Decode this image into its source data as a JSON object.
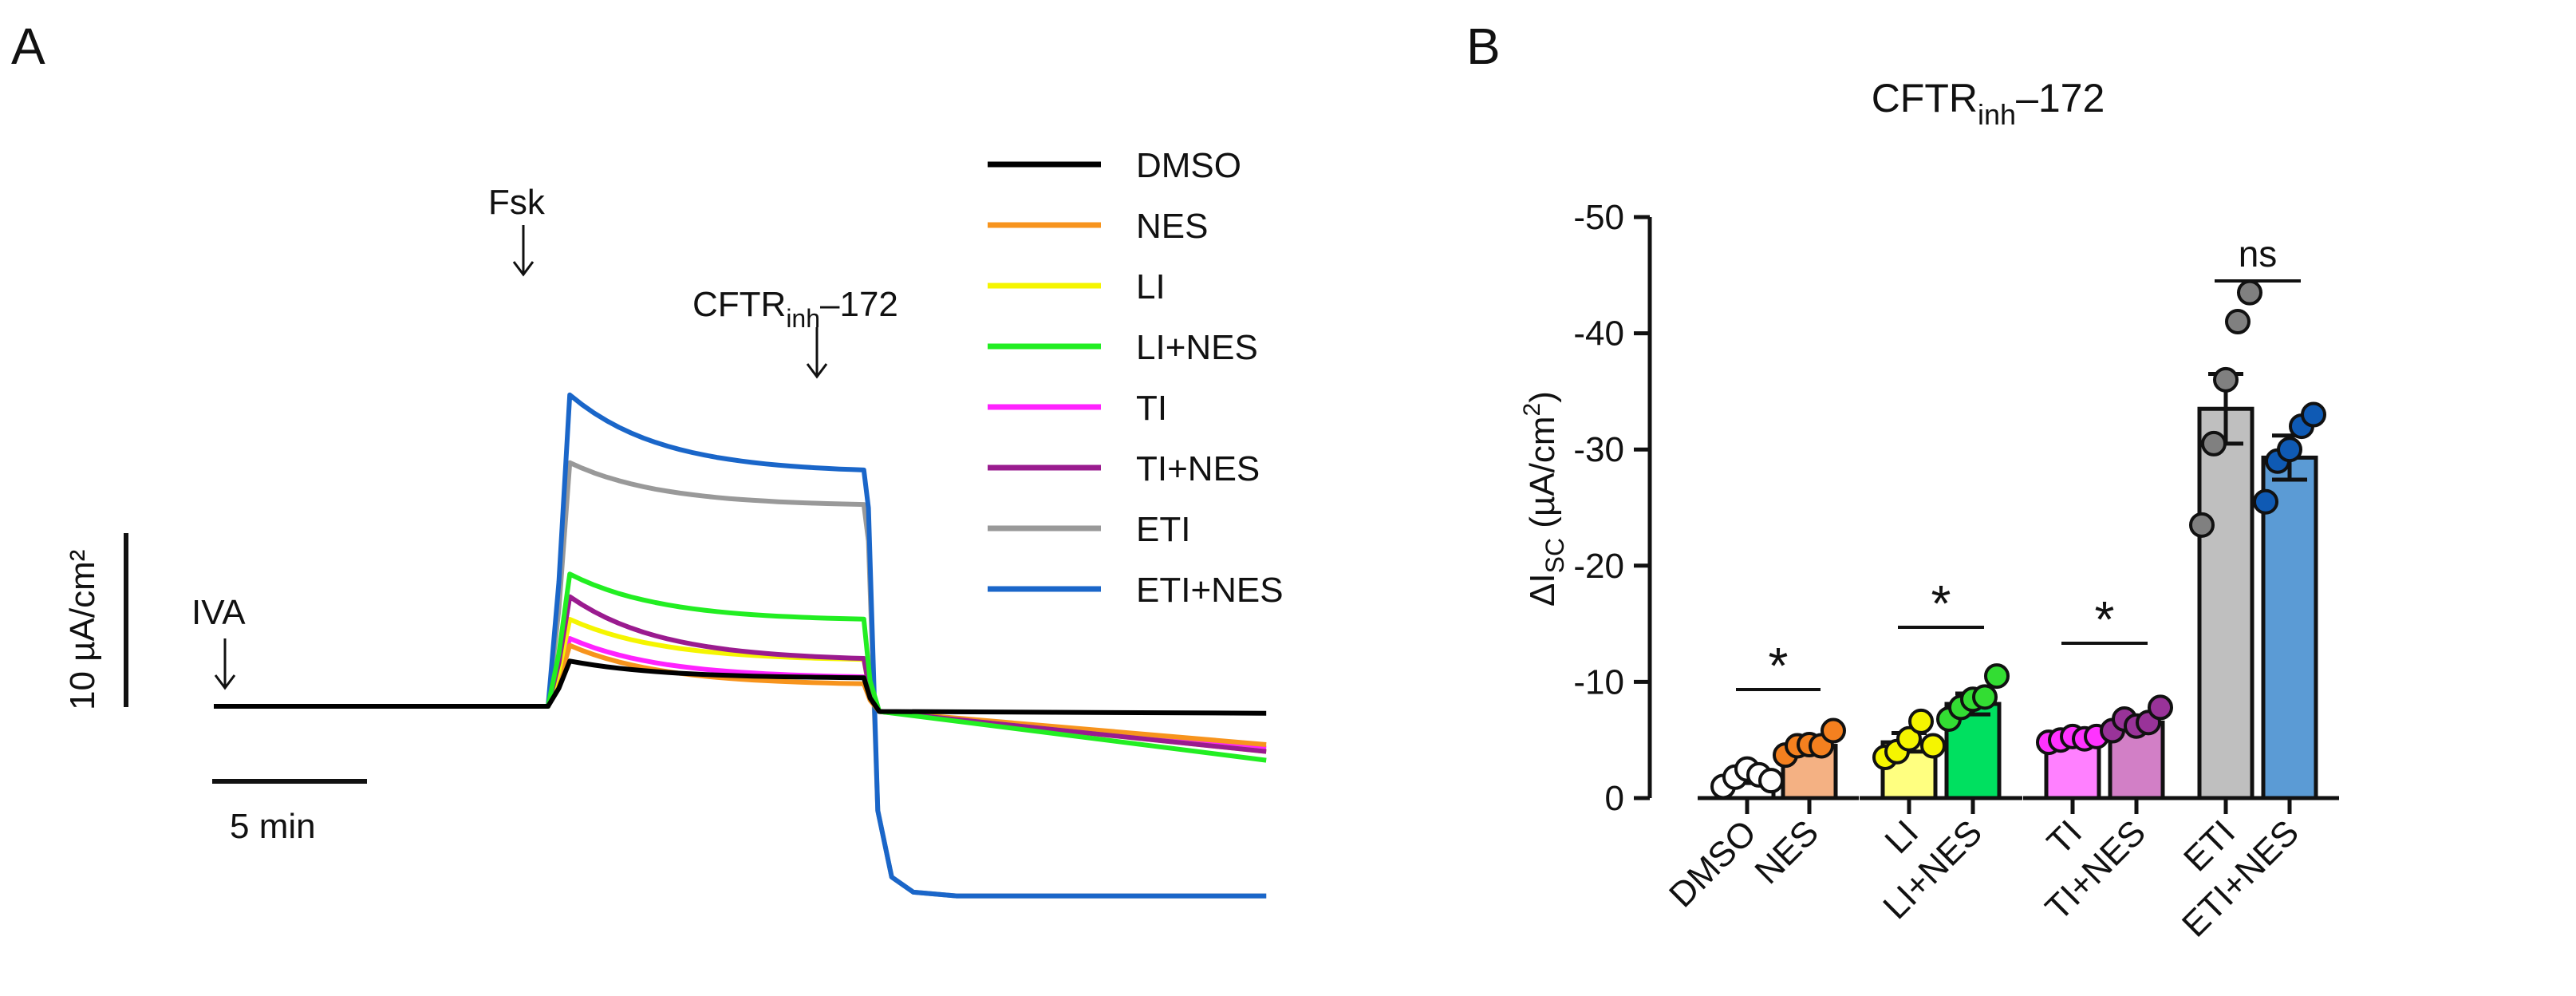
{
  "panel_a": {
    "letter": "A",
    "annotations": {
      "iva": "IVA",
      "fsk": "Fsk",
      "cftr_main": "CFTR",
      "cftr_sub": "inh",
      "cftr_end": "–172"
    },
    "scalebars": {
      "vertical": "10 µA/cm²",
      "horizontal": "5 min"
    },
    "colors": {
      "DMSO": "#000000",
      "NES": "#f7941d",
      "LI": "#f5f500",
      "LI+NES": "#22ee22",
      "TI": "#ff22ff",
      "TI+NES": "#9a1b8f",
      "ETI": "#999999",
      "ETI+NES": "#1a66c9"
    }
  },
  "panel_b": {
    "letter": "B",
    "title_main": "CFTR",
    "title_sub": "inh",
    "title_end": "–172",
    "ylabel_main": "ΔI",
    "ylabel_sub": "SC",
    "ylabel_unit": " (µA/cm",
    "ylabel_sup": "2",
    "ylabel_close": ")",
    "significance": [
      "*",
      "*",
      "*",
      "ns"
    ]
  },
  "chart_data": [
    {
      "type": "line",
      "xlabel": "",
      "ylabel": "",
      "x_unit": "min",
      "y_unit": "µA/cm²",
      "events": [
        {
          "label": "IVA",
          "x": 0
        },
        {
          "label": "Fsk",
          "x": 11
        },
        {
          "label": "CFTRinh–172",
          "x": 21
        }
      ],
      "series": [
        {
          "name": "DMSO",
          "baseline": 0,
          "iva": 0,
          "fsk_peak": 2.6,
          "fsk_end": 1.6,
          "inh_end": -0.4
        },
        {
          "name": "NES",
          "baseline": 0,
          "iva": 0,
          "fsk_peak": 3.5,
          "fsk_end": 1.2,
          "inh_end": -2.2
        },
        {
          "name": "LI",
          "baseline": 0,
          "iva": 0,
          "fsk_peak": 5.0,
          "fsk_end": 2.6,
          "inh_end": -2.6
        },
        {
          "name": "LI+NES",
          "baseline": 0,
          "iva": 0,
          "fsk_peak": 7.6,
          "fsk_end": 4.9,
          "inh_end": -3.1
        },
        {
          "name": "TI",
          "baseline": 0,
          "iva": 0,
          "fsk_peak": 3.9,
          "fsk_end": 1.6,
          "inh_end": -2.4
        },
        {
          "name": "TI+NES",
          "baseline": 0,
          "iva": 0,
          "fsk_peak": 6.3,
          "fsk_end": 2.6,
          "inh_end": -2.6
        },
        {
          "name": "ETI",
          "baseline": 0,
          "iva": 0,
          "fsk_peak": 14.0,
          "fsk_end": 11.5,
          "inh_end": -10.9
        },
        {
          "name": "ETI+NES",
          "baseline": 0,
          "iva": 0,
          "fsk_peak": 17.9,
          "fsk_end": 13.4,
          "inh_end": -10.9
        }
      ],
      "legend": [
        "DMSO",
        "NES",
        "LI",
        "LI+NES",
        "TI",
        "TI+NES",
        "ETI",
        "ETI+NES"
      ],
      "legend_position": "right"
    },
    {
      "type": "bar",
      "title": "CFTRinh–172",
      "ylabel": "ΔISC (µA/cm2)",
      "ylim": [
        0,
        -50
      ],
      "yticks": [
        "0",
        "-10",
        "-20",
        "-30",
        "-40",
        "-50"
      ],
      "categories": [
        "DMSO",
        "NES",
        "LI",
        "LI+NES",
        "TI",
        "TI+NES",
        "ETI",
        "ETI+NES"
      ],
      "values": [
        -1.8,
        -4.5,
        -4.8,
        -8.1,
        -5.0,
        -6.5,
        -33.5,
        -29.3
      ],
      "sem": [
        0.5,
        0.5,
        0.8,
        0.9,
        0.3,
        0.5,
        3.0,
        1.9
      ],
      "points": [
        [
          -1.0,
          -1.8,
          -2.5,
          -2.0,
          -1.5
        ],
        [
          -3.7,
          -4.5,
          -4.6,
          -4.5,
          -5.8
        ],
        [
          -3.5,
          -4.0,
          -5.1,
          -6.6,
          -4.5
        ],
        [
          -6.8,
          -7.8,
          -8.5,
          -8.7,
          -10.5
        ],
        [
          -4.8,
          -5.0,
          -5.3,
          -5.1,
          -5.3
        ],
        [
          -5.8,
          -6.8,
          -6.2,
          -6.5,
          -7.8
        ],
        [
          -23.5,
          -30.5,
          -36.0,
          -41.0,
          -43.5
        ],
        [
          -25.5,
          -29.0,
          -30.0,
          -32.0,
          -33.0
        ]
      ],
      "colors": [
        "#ffffff",
        "#f4b183",
        "#ffff80",
        "#00e060",
        "#ff80ff",
        "#d27fc6",
        "#bfbfbf",
        "#5b9bd5"
      ],
      "point_colors": [
        "#ffffff",
        "#f4801f",
        "#f5f500",
        "#33dd33",
        "#ff33ff",
        "#993399",
        "#808080",
        "#0f5ab4"
      ],
      "significance": [
        {
          "pair": [
            "DMSO",
            "NES"
          ],
          "label": "*"
        },
        {
          "pair": [
            "LI",
            "LI+NES"
          ],
          "label": "*"
        },
        {
          "pair": [
            "TI",
            "TI+NES"
          ],
          "label": "*"
        },
        {
          "pair": [
            "ETI",
            "ETI+NES"
          ],
          "label": "ns"
        }
      ]
    }
  ]
}
